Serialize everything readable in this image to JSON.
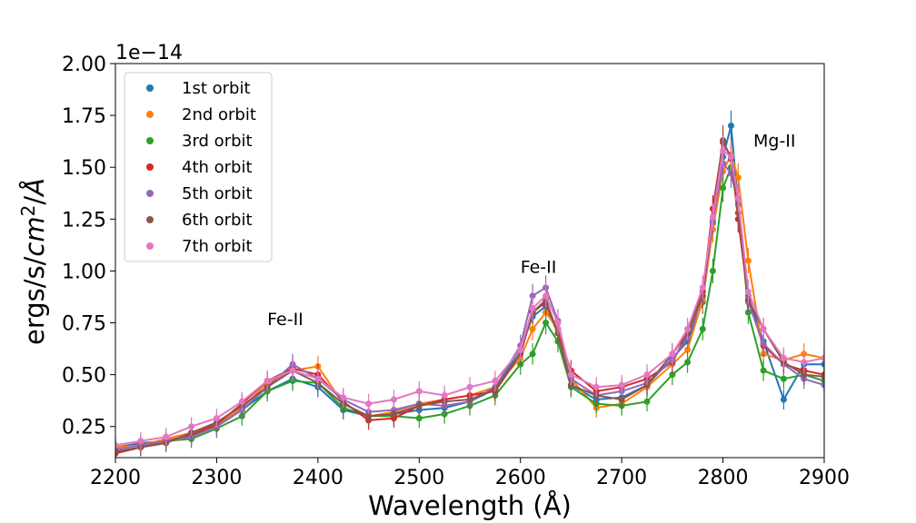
{
  "chart_data": {
    "type": "line",
    "title": "",
    "xlabel": "Wavelength ($\\AA$)",
    "xlabel_display": "Wavelength (Å)",
    "ylabel": "ergs/s/cm^2/Å",
    "xlim": [
      2200,
      2900
    ],
    "ylim": [
      0.1,
      2.0
    ],
    "y_offset_label": "1e−14",
    "x_ticks": [
      2200,
      2300,
      2400,
      2500,
      2600,
      2700,
      2800,
      2900
    ],
    "x_tick_labels": [
      "2200",
      "2300",
      "2400",
      "2500",
      "2600",
      "2700",
      "2800",
      "2900"
    ],
    "y_ticks": [
      0.25,
      0.5,
      0.75,
      1.0,
      1.25,
      1.5,
      1.75,
      2.0
    ],
    "y_tick_labels": [
      "0.25",
      "0.50",
      "0.75",
      "1.00",
      "1.25",
      "1.50",
      "1.75",
      "2.00"
    ],
    "grid": false,
    "legend_position": "top-left",
    "annotations": [
      {
        "text": "Fe-II",
        "x": 2350,
        "y": 0.74
      },
      {
        "text": "Fe-II",
        "x": 2600,
        "y": 0.99
      },
      {
        "text": "Mg-II",
        "x": 2830,
        "y": 1.6
      }
    ],
    "x": [
      2200,
      2225,
      2250,
      2275,
      2300,
      2325,
      2350,
      2375,
      2400,
      2425,
      2450,
      2475,
      2500,
      2525,
      2550,
      2575,
      2600,
      2612,
      2625,
      2637,
      2650,
      2675,
      2700,
      2725,
      2750,
      2765,
      2780,
      2790,
      2800,
      2808,
      2815,
      2825,
      2840,
      2860,
      2880,
      2900
    ],
    "series": [
      {
        "name": "1st orbit",
        "color": "#1f77b4",
        "values": [
          0.15,
          0.17,
          0.18,
          0.21,
          0.25,
          0.33,
          0.42,
          0.48,
          0.44,
          0.33,
          0.3,
          0.31,
          0.33,
          0.34,
          0.37,
          0.43,
          0.62,
          0.78,
          0.83,
          0.7,
          0.45,
          0.38,
          0.39,
          0.45,
          0.58,
          0.66,
          0.85,
          1.23,
          1.55,
          1.7,
          1.32,
          0.88,
          0.66,
          0.38,
          0.55,
          0.55
        ]
      },
      {
        "name": "2nd orbit",
        "color": "#ff7f0e",
        "values": [
          0.15,
          0.16,
          0.19,
          0.22,
          0.26,
          0.34,
          0.46,
          0.52,
          0.54,
          0.36,
          0.3,
          0.32,
          0.36,
          0.38,
          0.4,
          0.44,
          0.58,
          0.72,
          0.8,
          0.72,
          0.48,
          0.34,
          0.36,
          0.44,
          0.55,
          0.62,
          0.86,
          1.2,
          1.48,
          1.56,
          1.45,
          1.05,
          0.6,
          0.57,
          0.6,
          0.58
        ]
      },
      {
        "name": "3rd orbit",
        "color": "#2ca02c",
        "values": [
          0.13,
          0.15,
          0.18,
          0.19,
          0.24,
          0.3,
          0.42,
          0.47,
          0.46,
          0.34,
          0.3,
          0.3,
          0.29,
          0.31,
          0.35,
          0.4,
          0.55,
          0.6,
          0.75,
          0.66,
          0.44,
          0.36,
          0.35,
          0.37,
          0.5,
          0.56,
          0.72,
          1.0,
          1.4,
          1.5,
          1.35,
          0.8,
          0.52,
          0.48,
          0.5,
          0.47
        ]
      },
      {
        "name": "4th orbit",
        "color": "#d62728",
        "values": [
          0.12,
          0.15,
          0.18,
          0.21,
          0.26,
          0.36,
          0.47,
          0.53,
          0.5,
          0.37,
          0.28,
          0.29,
          0.35,
          0.38,
          0.4,
          0.42,
          0.6,
          0.8,
          0.85,
          0.7,
          0.52,
          0.42,
          0.44,
          0.48,
          0.56,
          0.7,
          0.9,
          1.3,
          1.62,
          1.55,
          1.25,
          0.86,
          0.64,
          0.55,
          0.52,
          0.5
        ]
      },
      {
        "name": "5th orbit",
        "color": "#9467bd",
        "values": [
          0.14,
          0.16,
          0.18,
          0.2,
          0.25,
          0.33,
          0.44,
          0.55,
          0.48,
          0.38,
          0.32,
          0.33,
          0.36,
          0.35,
          0.37,
          0.44,
          0.64,
          0.88,
          0.92,
          0.76,
          0.48,
          0.4,
          0.42,
          0.46,
          0.57,
          0.68,
          0.88,
          1.24,
          1.52,
          1.47,
          1.32,
          0.85,
          0.65,
          0.55,
          0.48,
          0.45
        ]
      },
      {
        "name": "6th orbit",
        "color": "#8c564b",
        "values": [
          0.13,
          0.15,
          0.17,
          0.22,
          0.27,
          0.35,
          0.44,
          0.52,
          0.46,
          0.36,
          0.3,
          0.31,
          0.35,
          0.37,
          0.38,
          0.43,
          0.6,
          0.8,
          0.86,
          0.7,
          0.45,
          0.4,
          0.38,
          0.45,
          0.6,
          0.7,
          0.88,
          1.26,
          1.63,
          1.54,
          1.28,
          0.86,
          0.72,
          0.56,
          0.5,
          0.49
        ]
      },
      {
        "name": "7th orbit",
        "color": "#e377c2",
        "values": [
          0.16,
          0.18,
          0.2,
          0.25,
          0.29,
          0.37,
          0.47,
          0.52,
          0.48,
          0.39,
          0.36,
          0.38,
          0.42,
          0.4,
          0.44,
          0.47,
          0.62,
          0.82,
          0.88,
          0.75,
          0.5,
          0.44,
          0.45,
          0.5,
          0.6,
          0.72,
          0.92,
          1.26,
          1.58,
          1.55,
          1.35,
          0.9,
          0.72,
          0.58,
          0.56,
          0.58
        ]
      }
    ]
  }
}
